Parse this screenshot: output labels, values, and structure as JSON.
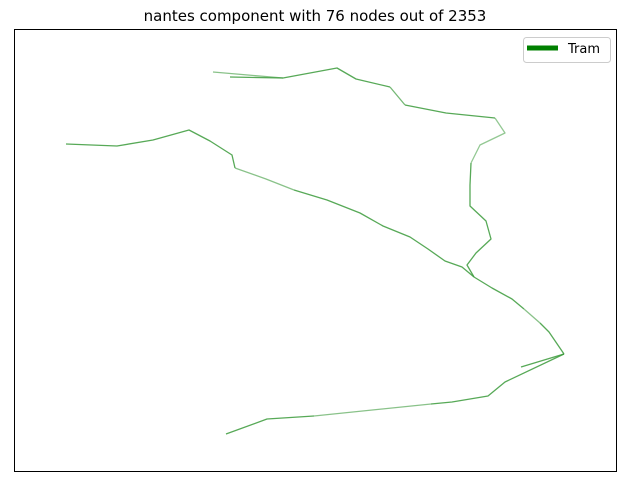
{
  "chart_data": {
    "type": "line",
    "title": "nantes component with 76 nodes out of 2353",
    "xlabel": "",
    "ylabel": "",
    "ticks_visible": false,
    "legend": {
      "placement": "top-right",
      "entries": [
        {
          "label": "Tram",
          "color": "#008000"
        }
      ]
    },
    "line_color": "#3a9a3a",
    "segments": [
      {
        "name": "north-loop-a",
        "alpha": 0.85,
        "points": [
          [
            230,
            77
          ],
          [
            283,
            78
          ],
          [
            337,
            68
          ],
          [
            356,
            79
          ],
          [
            390,
            87
          ]
        ]
      },
      {
        "name": "north-loop-b",
        "alpha": 0.6,
        "points": [
          [
            213,
            72
          ],
          [
            283,
            78
          ]
        ]
      },
      {
        "name": "north-loop-c",
        "alpha": 0.7,
        "points": [
          [
            390,
            87
          ],
          [
            405,
            105
          ]
        ]
      },
      {
        "name": "north-loop-d",
        "alpha": 0.85,
        "points": [
          [
            405,
            105
          ],
          [
            446,
            113
          ],
          [
            495,
            118
          ]
        ]
      },
      {
        "name": "north-loop-e",
        "alpha": 0.55,
        "points": [
          [
            495,
            118
          ],
          [
            505,
            133
          ],
          [
            480,
            145
          ],
          [
            471,
            163
          ]
        ]
      },
      {
        "name": "north-loop-f",
        "alpha": 0.85,
        "points": [
          [
            471,
            163
          ],
          [
            470,
            185
          ],
          [
            470,
            206
          ],
          [
            486,
            221
          ],
          [
            491,
            239
          ],
          [
            476,
            253
          ],
          [
            467,
            265
          ],
          [
            474,
            277
          ]
        ]
      },
      {
        "name": "west-branch-a",
        "alpha": 0.85,
        "points": [
          [
            66,
            144
          ],
          [
            117,
            146
          ],
          [
            153,
            140
          ],
          [
            189,
            130
          ],
          [
            210,
            141
          ],
          [
            232,
            155
          ],
          [
            235,
            168
          ]
        ]
      },
      {
        "name": "west-branch-b",
        "alpha": 0.6,
        "points": [
          [
            235,
            168
          ],
          [
            266,
            179
          ],
          [
            294,
            190
          ]
        ]
      },
      {
        "name": "west-branch-c",
        "alpha": 0.85,
        "points": [
          [
            294,
            190
          ],
          [
            327,
            200
          ],
          [
            360,
            213
          ],
          [
            383,
            226
          ],
          [
            410,
            237
          ],
          [
            428,
            249
          ],
          [
            445,
            261
          ],
          [
            462,
            267
          ],
          [
            474,
            277
          ]
        ]
      },
      {
        "name": "east-trunk",
        "alpha": 0.85,
        "points": [
          [
            474,
            277
          ],
          [
            492,
            288
          ],
          [
            512,
            299
          ],
          [
            524,
            309
          ]
        ]
      },
      {
        "name": "east-trunk-b",
        "alpha": 0.6,
        "points": [
          [
            524,
            309
          ],
          [
            540,
            323
          ]
        ]
      },
      {
        "name": "east-trunk-c",
        "alpha": 0.85,
        "points": [
          [
            540,
            323
          ],
          [
            549,
            332
          ],
          [
            564,
            354
          ]
        ]
      },
      {
        "name": "east-spur",
        "alpha": 0.85,
        "points": [
          [
            564,
            354
          ],
          [
            521,
            367
          ]
        ]
      },
      {
        "name": "south-branch-a",
        "alpha": 0.85,
        "points": [
          [
            564,
            354
          ],
          [
            505,
            382
          ],
          [
            488,
            396
          ],
          [
            452,
            402
          ],
          [
            431,
            404
          ]
        ]
      },
      {
        "name": "south-branch-b",
        "alpha": 0.6,
        "points": [
          [
            431,
            404
          ],
          [
            314,
            416
          ]
        ]
      },
      {
        "name": "south-branch-c",
        "alpha": 0.85,
        "points": [
          [
            314,
            416
          ],
          [
            267,
            419
          ],
          [
            226,
            434
          ]
        ]
      }
    ]
  }
}
